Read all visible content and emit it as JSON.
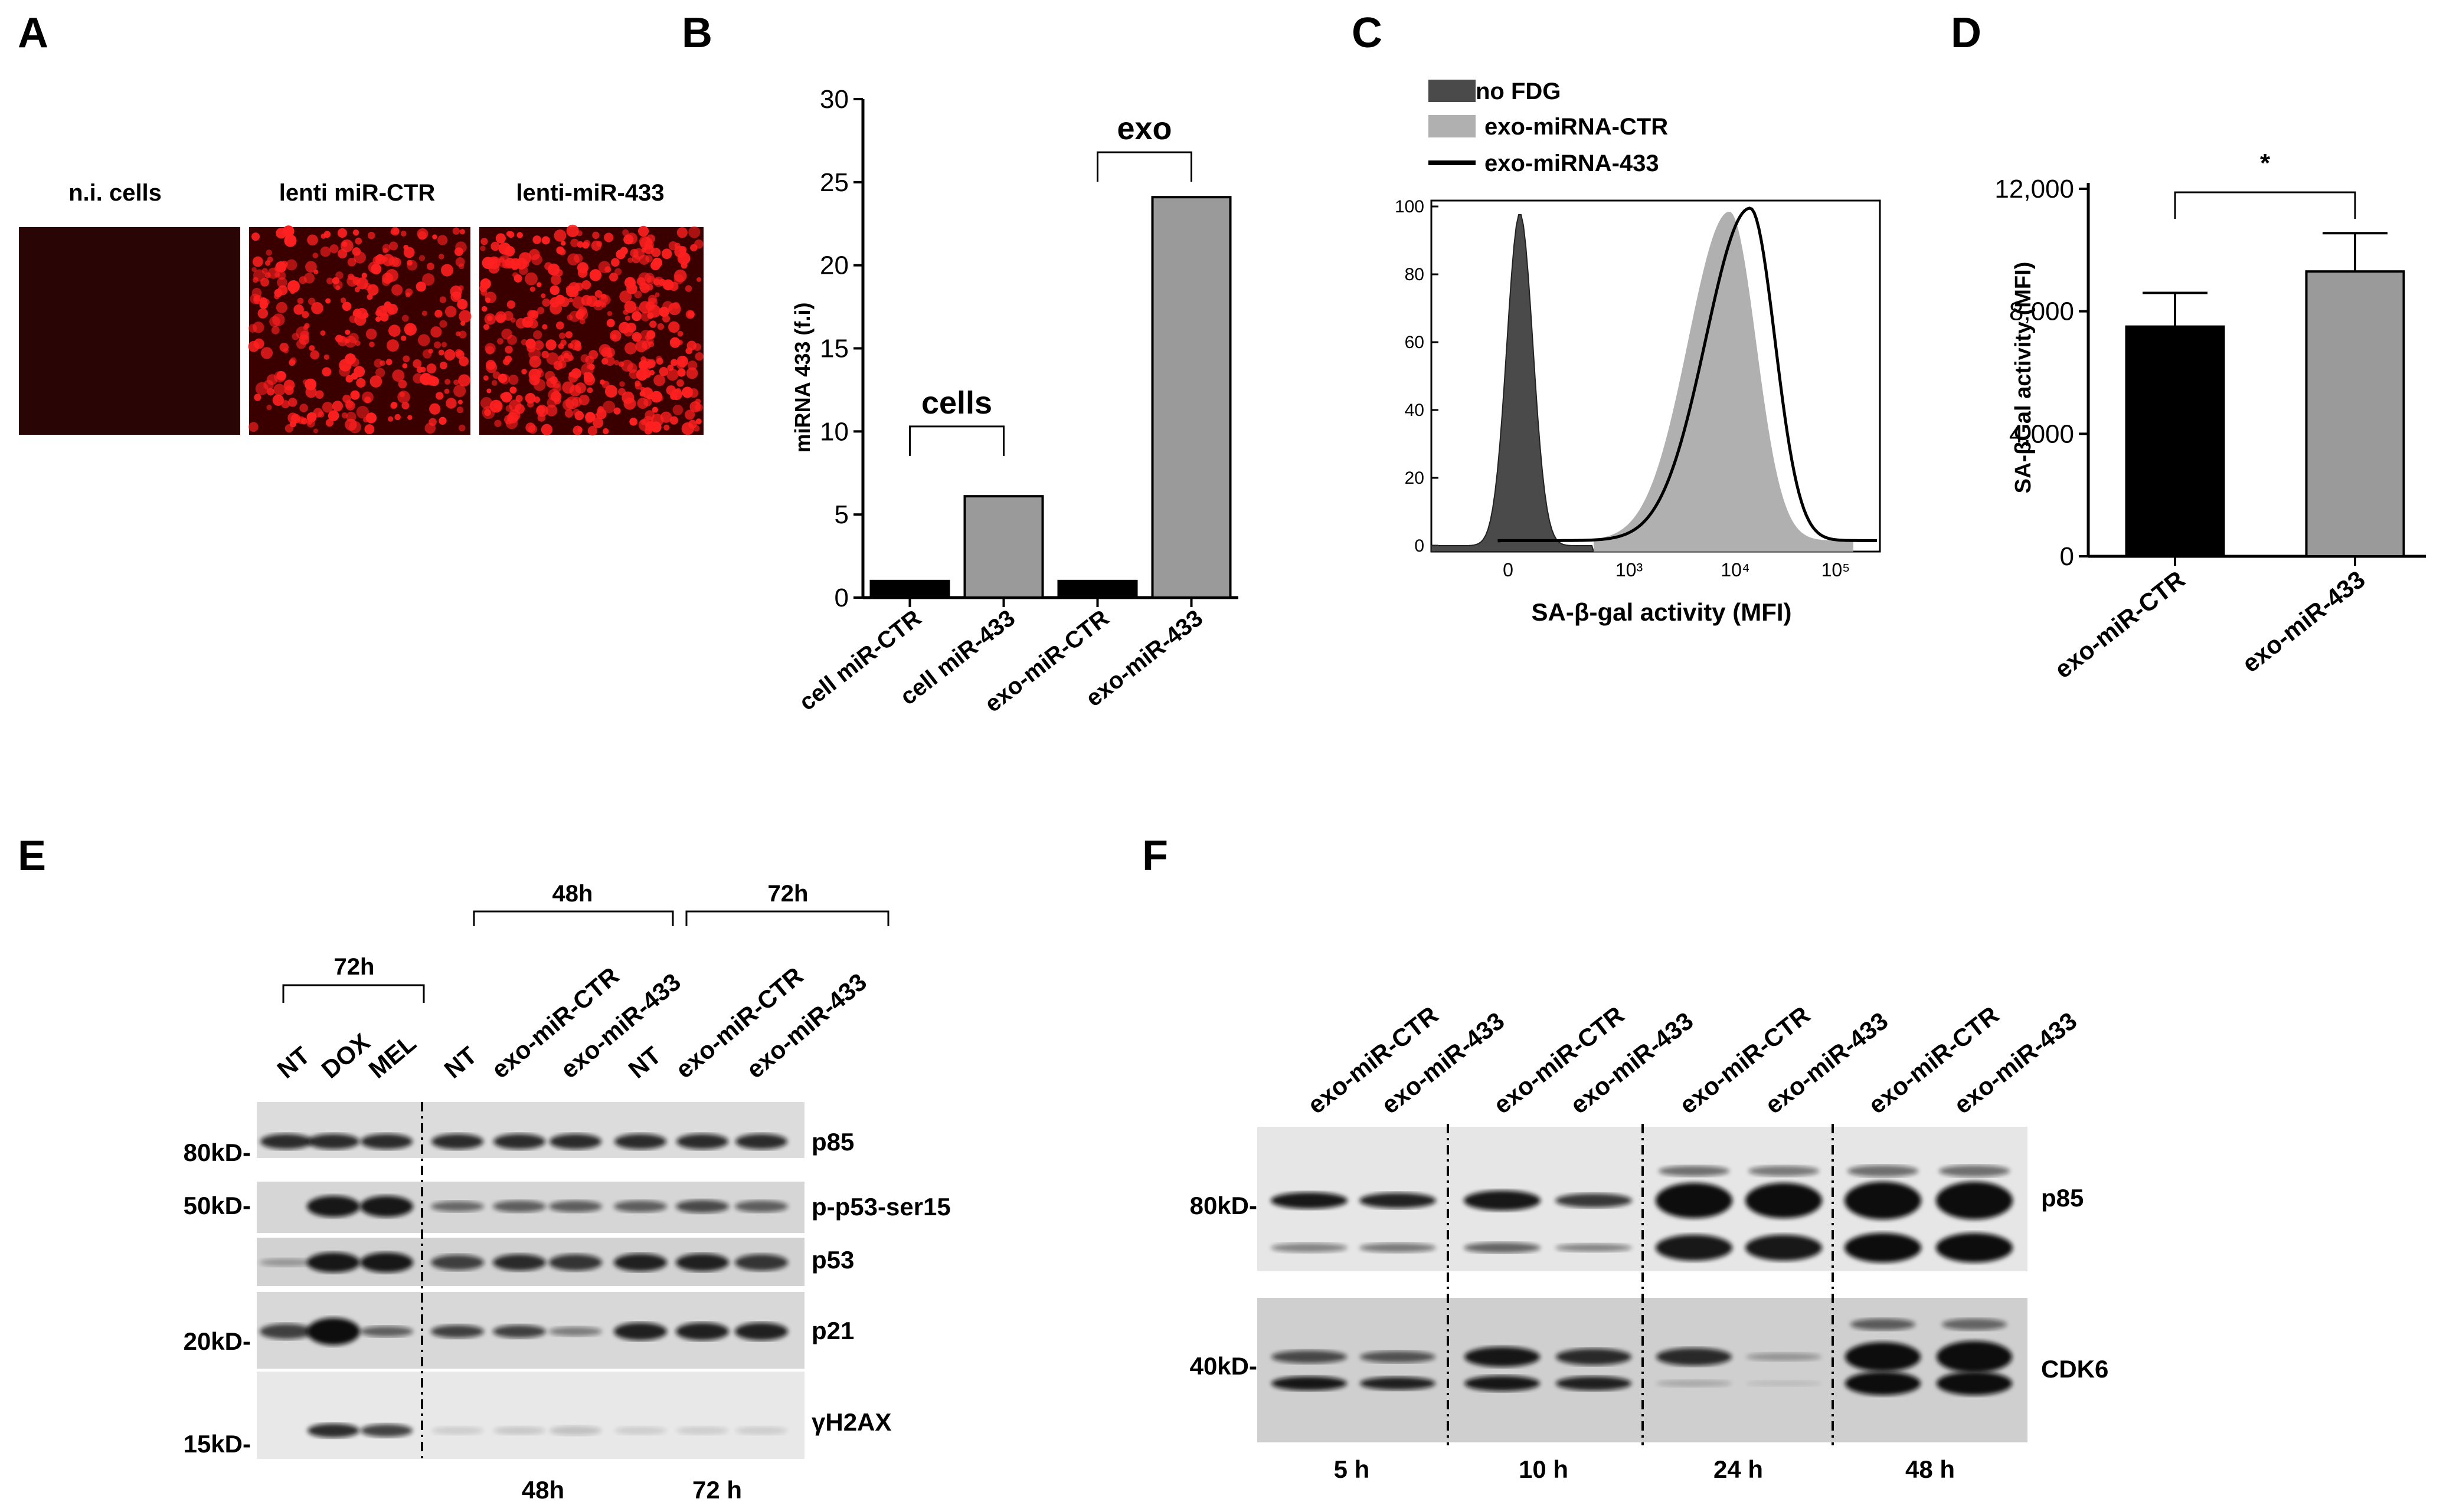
{
  "figure": {
    "panel_letters": [
      "A",
      "B",
      "C",
      "D",
      "E",
      "F"
    ]
  },
  "panel_a": {
    "labels": [
      "n.i. cells",
      "lenti miR-CTR",
      "lenti-miR-433"
    ],
    "colors": {
      "background": "#300000",
      "signal": "#ff2020"
    }
  },
  "panel_e": {
    "group_labels": {
      "left": "72h",
      "mid": "48h",
      "right": "72h"
    },
    "lane_labels": [
      "NT",
      "DOX",
      "MEL",
      "NT",
      "exo-miR-CTR",
      "exo-miR-433",
      "NT",
      "exo-miR-CTR",
      "exo-miR-433"
    ],
    "mw_markers": [
      "80kD-",
      "50kD-",
      "20kD-",
      "15kD-"
    ],
    "blot_labels": [
      "p85",
      "p-p53-ser15",
      "p53",
      "p21",
      "γH2AX"
    ],
    "bottom_labels": [
      "48h",
      "72 h"
    ]
  },
  "panel_f": {
    "lane_labels": [
      "exo-miR-CTR",
      "exo-miR-433",
      "exo-miR-CTR",
      "exo-miR-433",
      "exo-miR-CTR",
      "exo-miR-433",
      "exo-miR-CTR",
      "exo-miR-433"
    ],
    "mw_markers": [
      "80kD-",
      "40kD-"
    ],
    "blot_labels": [
      "p85",
      "CDK6"
    ],
    "time_labels": [
      "5 h",
      "10 h",
      "24 h",
      "48 h"
    ]
  },
  "chart_data": [
    {
      "panel": "B",
      "type": "bar",
      "categories": [
        "cell miR-CTR",
        "cell miR-433",
        "exo-miR-CTR",
        "exo-miR-433"
      ],
      "values": [
        1,
        6.1,
        1,
        24.1
      ],
      "bar_colors": [
        "#000000",
        "#9a9a9a",
        "#000000",
        "#9a9a9a"
      ],
      "ylabel": "miRNA 433 (f.i)",
      "ylim": [
        0,
        30
      ],
      "yticks": [
        "0",
        "5",
        "10",
        "15",
        "20",
        "25",
        "30"
      ],
      "annotations": [
        "cells",
        "exo"
      ]
    },
    {
      "panel": "C",
      "type": "histogram",
      "xlabel": "SA-β-gal activity (MFI)",
      "xscale": "log",
      "xticks": [
        "0",
        "10³",
        "10⁴",
        "10⁵"
      ],
      "yticks": [
        "0",
        "20",
        "40",
        "60",
        "80",
        "100"
      ],
      "ylim": [
        0,
        100
      ],
      "series": [
        {
          "name": "no FDG",
          "peak_x": 0,
          "peak_y": 98,
          "color": "#4a4a4a"
        },
        {
          "name": "exo-miRNA-CTR",
          "peak_x": 9000,
          "peak_y": 97,
          "color": "#b0b0b0"
        },
        {
          "name": "exo-miRNA-433",
          "peak_x": 13000,
          "peak_y": 98,
          "color": "#000000"
        }
      ]
    },
    {
      "panel": "D",
      "type": "bar",
      "categories": [
        "exo-miR-CTR",
        "exo-miR-433"
      ],
      "values": [
        7500,
        9300
      ],
      "errors": [
        1100,
        1250
      ],
      "bar_colors": [
        "#000000",
        "#9a9a9a"
      ],
      "ylabel": "SA-βGal activity (MFI)",
      "ylim": [
        0,
        12000
      ],
      "yticks": [
        "0",
        "4,000",
        "8,000",
        "12,000"
      ],
      "annotations": [
        "*"
      ]
    }
  ]
}
